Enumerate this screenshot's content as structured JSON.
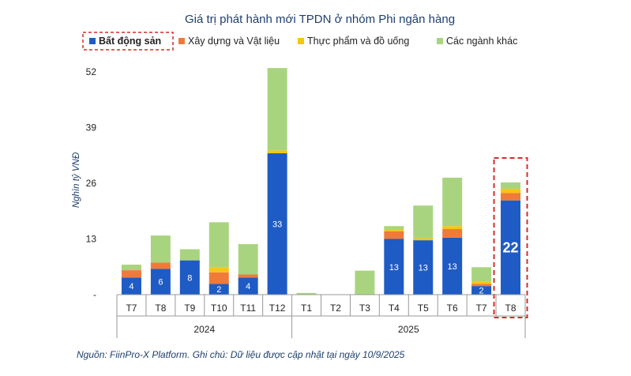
{
  "chart_data": {
    "type": "bar",
    "stacked": true,
    "title": "Giá trị phát hành mới TPDN ở nhóm Phi ngân hàng",
    "ylabel": "Nghìn tỷ VNĐ",
    "ylim": [
      0,
      52
    ],
    "yticks": [
      "-",
      "13",
      "26",
      "39",
      "52"
    ],
    "ytick_values": [
      0,
      13,
      26,
      39,
      52
    ],
    "groups": [
      {
        "label": "2024",
        "categories": [
          "T7",
          "T8",
          "T9",
          "T10",
          "T11",
          "T12"
        ]
      },
      {
        "label": "2025",
        "categories": [
          "T1",
          "T2",
          "T3",
          "T4",
          "T5",
          "T6",
          "T7",
          "T8"
        ]
      }
    ],
    "categories": [
      "T7",
      "T8",
      "T9",
      "T10",
      "T11",
      "T12",
      "T1",
      "T2",
      "T3",
      "T4",
      "T5",
      "T6",
      "T7",
      "T8"
    ],
    "series": [
      {
        "name": "Bất động sản",
        "color": "#1f5bc4",
        "values": [
          4,
          6,
          8,
          2.5,
          4,
          33,
          0,
          0,
          0,
          13,
          12.7,
          13.3,
          2,
          22
        ],
        "labels": [
          "4",
          "6",
          "8",
          "2",
          "4",
          "33",
          "",
          "",
          "",
          "13",
          "13",
          "13",
          "2",
          "22"
        ]
      },
      {
        "name": "Xây dựng và Vật liệu",
        "color": "#f07a3a",
        "values": [
          1.7,
          1.5,
          0,
          2.7,
          0.7,
          0,
          0,
          0,
          0,
          1.8,
          0,
          2,
          0.5,
          1.7
        ]
      },
      {
        "name": "Thực phẩm và đồ uống",
        "color": "#f5c518",
        "values": [
          0,
          0,
          0,
          1.2,
          0,
          0.7,
          0,
          0,
          0,
          0.5,
          0.5,
          0.7,
          0.5,
          1
        ]
      },
      {
        "name": "Các ngành khác",
        "color": "#a9d47f",
        "values": [
          1.3,
          6.3,
          2.6,
          10.5,
          7.1,
          19.2,
          0.4,
          0,
          5.6,
          0.7,
          7.6,
          11.3,
          3.4,
          1.5
        ]
      }
    ],
    "highlighted_legend": "Bất động sản",
    "highlighted_category_index": 13,
    "legend_position": "top",
    "grid": false
  },
  "source_note": "Nguồn: FiinPro-X Platform. Ghi chú: Dữ liệu được cập nhật tại ngày 10/9/2025",
  "colors": {
    "title": "#1f3f6e",
    "highlight_box": "#d62c2c",
    "axis": "#999999"
  }
}
